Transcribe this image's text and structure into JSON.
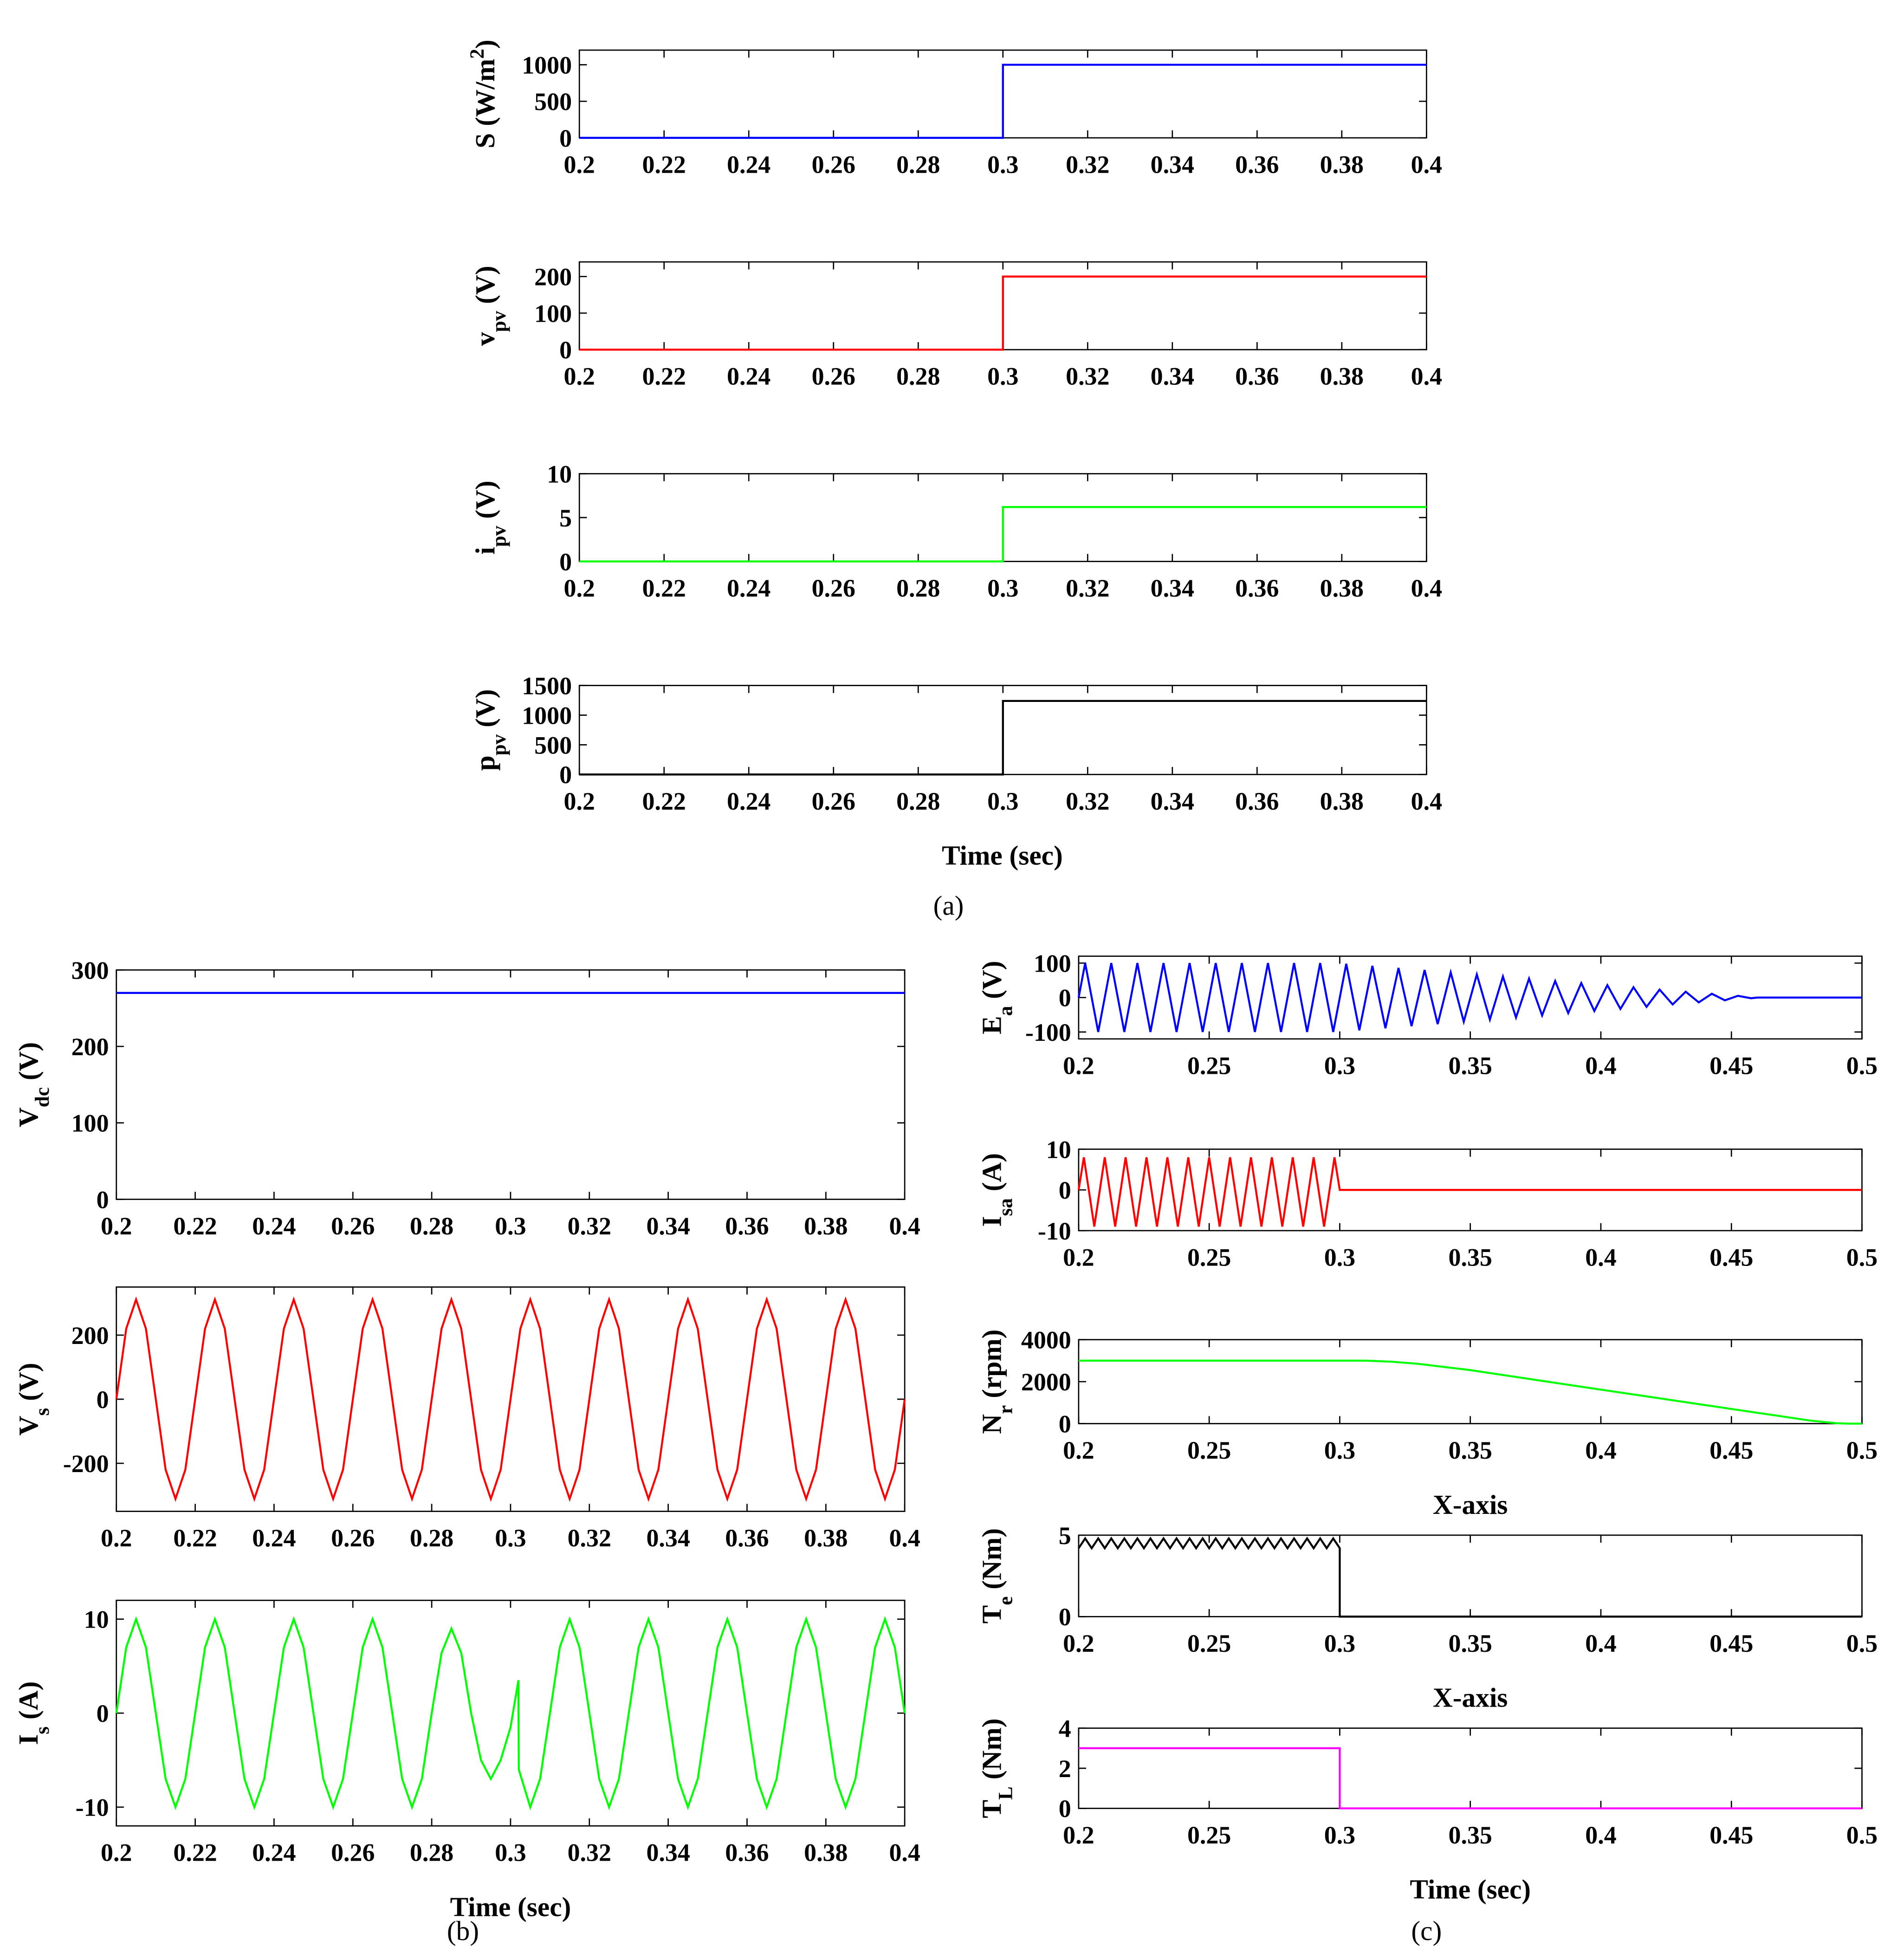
{
  "panel_labels": [
    "(a)",
    "(b)",
    "(c)"
  ],
  "chart_data": [
    {
      "type": "line",
      "ylabel": [
        {
          "text": "S (W/m"
        },
        {
          "text": "2",
          "shift": "sup"
        },
        {
          "text": ")"
        }
      ],
      "x": [
        0.2,
        0.3,
        0.3,
        0.4
      ],
      "values": [
        0,
        0,
        1000,
        1000
      ],
      "color": "#0000ff",
      "xlim": [
        0.2,
        0.4
      ],
      "xticks": [
        0.2,
        0.22,
        0.24,
        0.26,
        0.28,
        0.3,
        0.32,
        0.34,
        0.36,
        0.38,
        0.4
      ],
      "ylim": [
        0,
        1200
      ],
      "yticks": [
        0,
        500,
        1000
      ]
    },
    {
      "type": "line",
      "ylabel": [
        {
          "text": "v"
        },
        {
          "text": "pv",
          "shift": "sub"
        },
        {
          "text": " (V)"
        }
      ],
      "x": [
        0.2,
        0.3,
        0.3,
        0.4
      ],
      "values": [
        0,
        0,
        200,
        200
      ],
      "color": "#ff0000",
      "xlim": [
        0.2,
        0.4
      ],
      "xticks": [
        0.2,
        0.22,
        0.24,
        0.26,
        0.28,
        0.3,
        0.32,
        0.34,
        0.36,
        0.38,
        0.4
      ],
      "ylim": [
        0,
        240
      ],
      "yticks": [
        0,
        100,
        200
      ]
    },
    {
      "type": "line",
      "ylabel": [
        {
          "text": "i"
        },
        {
          "text": "pv",
          "shift": "sub"
        },
        {
          "text": " (V)"
        }
      ],
      "x": [
        0.2,
        0.3,
        0.3,
        0.4
      ],
      "values": [
        0,
        0,
        6.2,
        6.2
      ],
      "color": "#00ff00",
      "xlim": [
        0.2,
        0.4
      ],
      "xticks": [
        0.2,
        0.22,
        0.24,
        0.26,
        0.28,
        0.3,
        0.32,
        0.34,
        0.36,
        0.38,
        0.4
      ],
      "ylim": [
        0,
        10
      ],
      "yticks": [
        0,
        5,
        10
      ]
    },
    {
      "type": "line",
      "ylabel": [
        {
          "text": "p"
        },
        {
          "text": "pv",
          "shift": "sub"
        },
        {
          "text": " (V)"
        }
      ],
      "xlabel": "Time (sec)",
      "x": [
        0.2,
        0.3,
        0.3,
        0.4
      ],
      "values": [
        0,
        0,
        1240,
        1240
      ],
      "color": "#000000",
      "xlim": [
        0.2,
        0.4
      ],
      "xticks": [
        0.2,
        0.22,
        0.24,
        0.26,
        0.28,
        0.3,
        0.32,
        0.34,
        0.36,
        0.38,
        0.4
      ],
      "ylim": [
        0,
        1500
      ],
      "yticks": [
        0,
        500,
        1000,
        1500
      ]
    },
    {
      "type": "line",
      "ylabel": [
        {
          "text": "V"
        },
        {
          "text": "dc",
          "shift": "sub"
        },
        {
          "text": " (V)"
        }
      ],
      "x": [
        0.2,
        0.4
      ],
      "values": [
        270,
        270
      ],
      "color": "#0000ff",
      "xlim": [
        0.2,
        0.4
      ],
      "xticks": [
        0.2,
        0.22,
        0.24,
        0.26,
        0.28,
        0.3,
        0.32,
        0.34,
        0.36,
        0.38,
        0.4
      ],
      "ylim": [
        0,
        300
      ],
      "yticks": [
        0,
        100,
        200,
        300
      ]
    },
    {
      "type": "line",
      "ylabel": [
        {
          "text": "V"
        },
        {
          "text": "s",
          "shift": "sub"
        },
        {
          "text": " (V)"
        }
      ],
      "x": [
        0.2,
        0.2025,
        0.205,
        0.2075,
        0.21,
        0.2125,
        0.215,
        0.2175,
        0.22,
        0.2225,
        0.225,
        0.2275,
        0.23,
        0.2325,
        0.235,
        0.2375,
        0.24,
        0.2425,
        0.245,
        0.2475,
        0.25,
        0.2525,
        0.255,
        0.2575,
        0.26,
        0.2625,
        0.265,
        0.2675,
        0.27,
        0.2725,
        0.275,
        0.2775,
        0.28,
        0.2825,
        0.285,
        0.2875,
        0.29,
        0.2925,
        0.295,
        0.2975,
        0.3,
        0.3025,
        0.305,
        0.3075,
        0.31,
        0.3125,
        0.315,
        0.3175,
        0.32,
        0.3225,
        0.325,
        0.3275,
        0.33,
        0.3325,
        0.335,
        0.3375,
        0.34,
        0.3425,
        0.345,
        0.3475,
        0.35,
        0.3525,
        0.355,
        0.3575,
        0.36,
        0.3625,
        0.365,
        0.3675,
        0.37,
        0.3725,
        0.375,
        0.3775,
        0.38,
        0.3825,
        0.385,
        0.3875,
        0.39,
        0.3925,
        0.395,
        0.3975,
        0.4
      ],
      "values": [
        0,
        220,
        311,
        220,
        0,
        -220,
        -311,
        -220,
        0,
        220,
        311,
        220,
        0,
        -220,
        -311,
        -220,
        0,
        220,
        311,
        220,
        0,
        -220,
        -311,
        -220,
        0,
        220,
        311,
        220,
        0,
        -220,
        -311,
        -220,
        0,
        220,
        311,
        220,
        0,
        -220,
        -311,
        -220,
        0,
        220,
        311,
        220,
        0,
        -220,
        -311,
        -220,
        0,
        220,
        311,
        220,
        0,
        -220,
        -311,
        -220,
        0,
        220,
        311,
        220,
        0,
        -220,
        -311,
        -220,
        0,
        220,
        311,
        220,
        0,
        -220,
        -311,
        -220,
        0,
        220,
        311,
        220,
        0,
        -220,
        -311,
        -220,
        0
      ],
      "color": "#ff0000",
      "xlim": [
        0.2,
        0.4
      ],
      "xticks": [
        0.2,
        0.22,
        0.24,
        0.26,
        0.28,
        0.3,
        0.32,
        0.34,
        0.36,
        0.38,
        0.4
      ],
      "ylim": [
        -350,
        350
      ],
      "yticks": [
        -200,
        0,
        200
      ]
    },
    {
      "type": "line",
      "ylabel": [
        {
          "text": "I"
        },
        {
          "text": "s",
          "shift": "sub"
        },
        {
          "text": " (A)"
        }
      ],
      "xlabel": "Time (sec)",
      "x": [
        0.2,
        0.2025,
        0.205,
        0.2075,
        0.21,
        0.2125,
        0.215,
        0.2175,
        0.22,
        0.2225,
        0.225,
        0.2275,
        0.23,
        0.2325,
        0.235,
        0.2375,
        0.24,
        0.2425,
        0.245,
        0.2475,
        0.25,
        0.2525,
        0.255,
        0.2575,
        0.26,
        0.2625,
        0.265,
        0.2675,
        0.27,
        0.2725,
        0.275,
        0.2775,
        0.28,
        0.2825,
        0.285,
        0.2875,
        0.29,
        0.2925,
        0.295,
        0.2975,
        0.3,
        0.302,
        0.3021,
        0.305,
        0.3075,
        0.31,
        0.3125,
        0.315,
        0.3175,
        0.32,
        0.3225,
        0.325,
        0.3275,
        0.33,
        0.3325,
        0.335,
        0.3375,
        0.34,
        0.3425,
        0.345,
        0.3475,
        0.35,
        0.3525,
        0.355,
        0.3575,
        0.36,
        0.3625,
        0.365,
        0.3675,
        0.37,
        0.3725,
        0.375,
        0.3775,
        0.38,
        0.3825,
        0.385,
        0.3875,
        0.39,
        0.3925,
        0.395,
        0.3975,
        0.4
      ],
      "values": [
        0,
        7,
        10,
        7,
        0,
        -7,
        -10,
        -7,
        0,
        7,
        10,
        7,
        0,
        -7,
        -10,
        -7,
        0,
        7,
        10,
        7,
        0,
        -7,
        -10,
        -7,
        0,
        7,
        10,
        7,
        0,
        -7,
        -10,
        -7,
        0,
        6.4,
        9,
        6.4,
        0,
        -5,
        -7,
        -5,
        -1.5,
        3.5,
        -6,
        -10,
        -7,
        0,
        7,
        10,
        7,
        0,
        -7,
        -10,
        -7,
        0,
        7,
        10,
        7,
        0,
        -7,
        -10,
        -7,
        0,
        7,
        10,
        7,
        0,
        -7,
        -10,
        -7,
        0,
        7,
        10,
        7,
        0,
        -7,
        -10,
        -7,
        0,
        7,
        10,
        7,
        0
      ],
      "color": "#00ff00",
      "xlim": [
        0.2,
        0.4
      ],
      "xticks": [
        0.2,
        0.22,
        0.24,
        0.26,
        0.28,
        0.3,
        0.32,
        0.34,
        0.36,
        0.38,
        0.4
      ],
      "ylim": [
        -12,
        12
      ],
      "yticks": [
        -10,
        0,
        10
      ]
    },
    {
      "type": "line",
      "ylabel": [
        {
          "text": "E"
        },
        {
          "text": "a",
          "shift": "sub"
        },
        {
          "text": " (V)"
        }
      ],
      "x": [
        0.2,
        0.2025,
        0.2075,
        0.2125,
        0.2175,
        0.2225,
        0.2275,
        0.2325,
        0.2375,
        0.2425,
        0.2475,
        0.2525,
        0.2575,
        0.2625,
        0.2675,
        0.2725,
        0.2775,
        0.2825,
        0.2875,
        0.2925,
        0.2975,
        0.3025,
        0.3075,
        0.3125,
        0.3175,
        0.3225,
        0.3275,
        0.3325,
        0.3375,
        0.3425,
        0.3475,
        0.3525,
        0.3575,
        0.3625,
        0.3675,
        0.3725,
        0.3775,
        0.3825,
        0.3875,
        0.3925,
        0.3975,
        0.4025,
        0.4075,
        0.4125,
        0.4175,
        0.4225,
        0.4275,
        0.4325,
        0.4375,
        0.4425,
        0.4475,
        0.4525,
        0.4575,
        0.46,
        0.5
      ],
      "values": [
        0,
        100,
        -100,
        100,
        -100,
        100,
        -100,
        100,
        -100,
        100,
        -100,
        100,
        -100,
        100,
        -100,
        100,
        -100,
        100,
        -100,
        100,
        -100,
        98,
        -95,
        92,
        -89,
        86,
        -83,
        80,
        -77,
        73,
        -70,
        67,
        -64,
        61,
        -58,
        55,
        -52,
        48,
        -45,
        42,
        -39,
        36,
        -33,
        30,
        -27,
        23,
        -20,
        17,
        -14,
        11,
        -8,
        5,
        -2,
        0,
        0
      ],
      "color": "#0000ff",
      "xlim": [
        0.2,
        0.5
      ],
      "xticks": [
        0.2,
        0.25,
        0.3,
        0.35,
        0.4,
        0.45,
        0.5
      ],
      "ylim": [
        -120,
        120
      ],
      "yticks": [
        -100,
        0,
        100
      ]
    },
    {
      "type": "line",
      "ylabel": [
        {
          "text": "I"
        },
        {
          "text": "sa",
          "shift": "sub"
        },
        {
          "text": " (A)"
        }
      ],
      "x": [
        0.2,
        0.202,
        0.206,
        0.21,
        0.214,
        0.218,
        0.222,
        0.226,
        0.23,
        0.234,
        0.238,
        0.242,
        0.246,
        0.25,
        0.254,
        0.258,
        0.262,
        0.266,
        0.27,
        0.274,
        0.278,
        0.282,
        0.286,
        0.29,
        0.294,
        0.298,
        0.3,
        0.5
      ],
      "values": [
        0,
        8,
        -9,
        8,
        -9,
        8,
        -9,
        8,
        -9,
        8,
        -9,
        8,
        -9,
        8,
        -9,
        8,
        -9,
        8,
        -9,
        8,
        -9,
        8,
        -9,
        8,
        -9,
        8,
        0,
        0
      ],
      "color": "#ff0000",
      "xlim": [
        0.2,
        0.5
      ],
      "xticks": [
        0.2,
        0.25,
        0.3,
        0.35,
        0.4,
        0.45,
        0.5
      ],
      "ylim": [
        -10,
        10
      ],
      "yticks": [
        -10,
        0,
        10
      ]
    },
    {
      "type": "line",
      "ylabel": [
        {
          "text": "N"
        },
        {
          "text": "r",
          "shift": "sub"
        },
        {
          "text": " (rpm)"
        }
      ],
      "xlabel": "X-axis",
      "x": [
        0.2,
        0.3,
        0.31,
        0.32,
        0.33,
        0.35,
        0.4,
        0.45,
        0.48,
        0.49,
        0.495,
        0.5
      ],
      "values": [
        3000,
        3000,
        3000,
        2950,
        2850,
        2550,
        1620,
        700,
        150,
        20,
        0,
        0
      ],
      "color": "#00ff00",
      "xlim": [
        0.2,
        0.5
      ],
      "xticks": [
        0.2,
        0.25,
        0.3,
        0.35,
        0.4,
        0.45,
        0.5
      ],
      "ylim": [
        0,
        4000
      ],
      "yticks": [
        0,
        2000,
        4000
      ]
    },
    {
      "type": "line",
      "ylabel": [
        {
          "text": "T"
        },
        {
          "text": "e",
          "shift": "sub"
        },
        {
          "text": " (Nm)"
        }
      ],
      "xlabel": "X-axis",
      "x": [
        0.2,
        0.2025,
        0.205,
        0.2075,
        0.21,
        0.2125,
        0.215,
        0.2175,
        0.22,
        0.2225,
        0.225,
        0.2275,
        0.23,
        0.2325,
        0.235,
        0.2375,
        0.24,
        0.2425,
        0.245,
        0.2475,
        0.25,
        0.2525,
        0.255,
        0.2575,
        0.26,
        0.2625,
        0.265,
        0.2675,
        0.27,
        0.2725,
        0.275,
        0.2775,
        0.28,
        0.2825,
        0.285,
        0.2875,
        0.29,
        0.2925,
        0.295,
        0.2975,
        0.3,
        0.3,
        0.5
      ],
      "values": [
        4.2,
        4.8,
        4.2,
        4.8,
        4.2,
        4.8,
        4.2,
        4.8,
        4.2,
        4.8,
        4.2,
        4.8,
        4.2,
        4.8,
        4.2,
        4.8,
        4.2,
        4.8,
        4.2,
        4.8,
        4.2,
        4.8,
        4.2,
        4.8,
        4.2,
        4.8,
        4.2,
        4.8,
        4.2,
        4.8,
        4.2,
        4.8,
        4.2,
        4.8,
        4.2,
        4.8,
        4.2,
        4.8,
        4.2,
        4.8,
        4.2,
        0,
        0
      ],
      "color": "#000000",
      "xlim": [
        0.2,
        0.5
      ],
      "xticks": [
        0.2,
        0.25,
        0.3,
        0.35,
        0.4,
        0.45,
        0.5
      ],
      "ylim": [
        0,
        5
      ],
      "yticks": [
        0,
        5
      ]
    },
    {
      "type": "line",
      "ylabel": [
        {
          "text": "T"
        },
        {
          "text": "L",
          "shift": "sub"
        },
        {
          "text": " (Nm)"
        }
      ],
      "xlabel": "Time (sec)",
      "x": [
        0.2,
        0.3,
        0.3,
        0.5
      ],
      "values": [
        3,
        3,
        0,
        0
      ],
      "color": "#ff00ff",
      "xlim": [
        0.2,
        0.5
      ],
      "xticks": [
        0.2,
        0.25,
        0.3,
        0.35,
        0.4,
        0.45,
        0.5
      ],
      "ylim": [
        0,
        4
      ],
      "yticks": [
        0,
        2,
        4
      ]
    }
  ]
}
